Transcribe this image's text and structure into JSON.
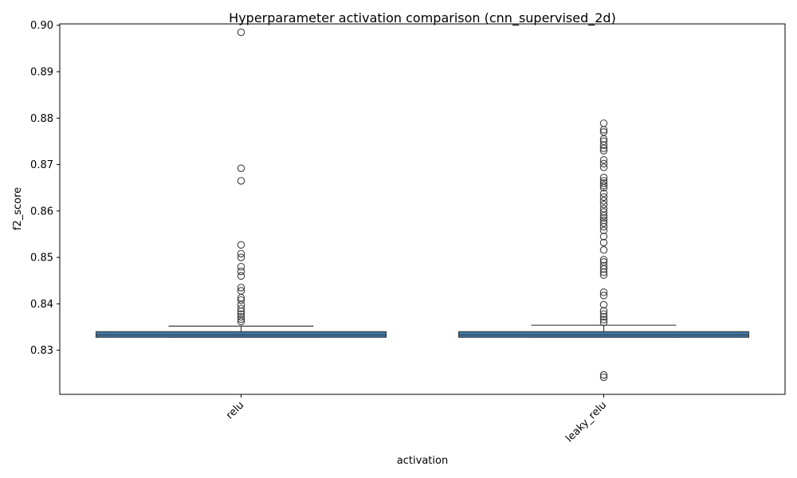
{
  "chart_data": {
    "type": "box",
    "title": "Hyperparameter activation comparison (cnn_supervised_2d)",
    "xlabel": "activation",
    "ylabel": "f2_score",
    "ylim": [
      0.8205,
      0.9003
    ],
    "yticks": [
      0.83,
      0.84,
      0.85,
      0.86,
      0.87,
      0.88,
      0.89,
      0.9
    ],
    "ytick_labels": [
      "0.83",
      "0.84",
      "0.85",
      "0.86",
      "0.87",
      "0.88",
      "0.89",
      "0.90"
    ],
    "categories": [
      "relu",
      "leaky_relu"
    ],
    "box_color": "#3a78ae",
    "edge_color": "#3f3f3f",
    "boxes": [
      {
        "category": "relu",
        "q1": 0.8328,
        "median": 0.8333,
        "q3": 0.834,
        "whisker_low": 0.8328,
        "whisker_high": 0.8352,
        "outliers": [
          0.8985,
          0.8692,
          0.8665,
          0.8527,
          0.8508,
          0.85,
          0.848,
          0.847,
          0.846,
          0.8435,
          0.8428,
          0.8413,
          0.8408,
          0.8398,
          0.839,
          0.8384,
          0.8378,
          0.8372,
          0.8367,
          0.8362
        ]
      },
      {
        "category": "leaky_relu",
        "q1": 0.8328,
        "median": 0.8333,
        "q3": 0.834,
        "whisker_low": 0.8328,
        "whisker_high": 0.8354,
        "outliers": [
          0.8789,
          0.8775,
          0.877,
          0.8755,
          0.875,
          0.8742,
          0.8735,
          0.873,
          0.871,
          0.8702,
          0.8694,
          0.8672,
          0.8665,
          0.866,
          0.8655,
          0.865,
          0.8638,
          0.863,
          0.8622,
          0.8614,
          0.8605,
          0.8598,
          0.859,
          0.8585,
          0.858,
          0.8574,
          0.8566,
          0.8558,
          0.8545,
          0.8532,
          0.8516,
          0.8495,
          0.849,
          0.8482,
          0.8475,
          0.8468,
          0.8462,
          0.8425,
          0.8418,
          0.8398,
          0.8385,
          0.8378,
          0.8372,
          0.8366,
          0.836,
          0.8247,
          0.8242
        ]
      }
    ]
  }
}
